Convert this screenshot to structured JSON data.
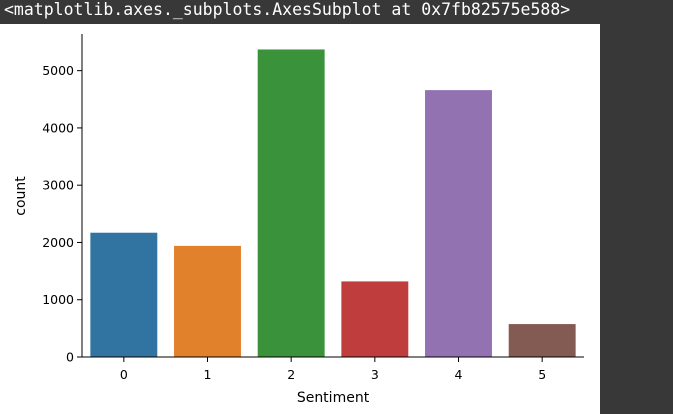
{
  "output": {
    "repr_text": "<matplotlib.axes._subplots.AxesSubplot at 0x7fb82575e588>"
  },
  "chart_data": {
    "type": "bar",
    "categories": [
      "0",
      "1",
      "2",
      "3",
      "4",
      "5"
    ],
    "values": [
      2170,
      1940,
      5370,
      1320,
      4660,
      575
    ],
    "colors": [
      "#3274a1",
      "#e1812c",
      "#3a923a",
      "#c03d3e",
      "#9372b2",
      "#845b53"
    ],
    "xlabel": "Sentiment",
    "ylabel": "count",
    "ylim": [
      0,
      5640
    ],
    "yticks": [
      0,
      1000,
      2000,
      3000,
      4000,
      5000
    ],
    "grid": false,
    "legend": "none"
  }
}
